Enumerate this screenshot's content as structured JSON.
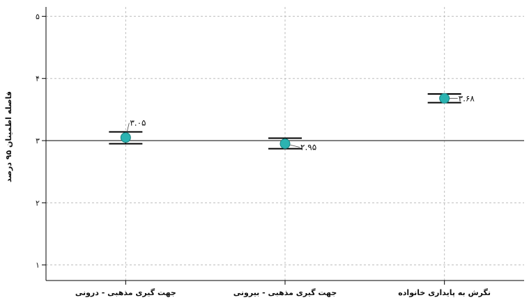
{
  "chart_data": {
    "type": "scatter",
    "title": "",
    "xlabel": "",
    "ylabel": "فاصله اطمینان ۹۵ درصد",
    "ylim": [
      0.75,
      5.15
    ],
    "yticks": [
      1,
      2,
      3,
      4,
      5
    ],
    "ytick_labels": [
      "۱",
      "۲",
      "۳",
      "۴",
      "۵"
    ],
    "grid": true,
    "reference_line": 3,
    "categories": [
      "جهت گیری مذهبی - درونی",
      "جهت گیری مذهبی - بیرونی",
      "نگرش به پایداری خانواده"
    ],
    "values": [
      3.05,
      2.95,
      3.68
    ],
    "lower": [
      2.95,
      2.87,
      3.61
    ],
    "upper": [
      3.14,
      3.04,
      3.75
    ],
    "labels": [
      "۳.۰۵",
      "۲.۹۵",
      "۳.۶۸"
    ],
    "colors": {
      "point": "#2bb3b1",
      "point_stroke": "#1a7f7e",
      "errorbar": "#000000",
      "grid": "#bdbdbd",
      "refline": "#333333"
    }
  }
}
